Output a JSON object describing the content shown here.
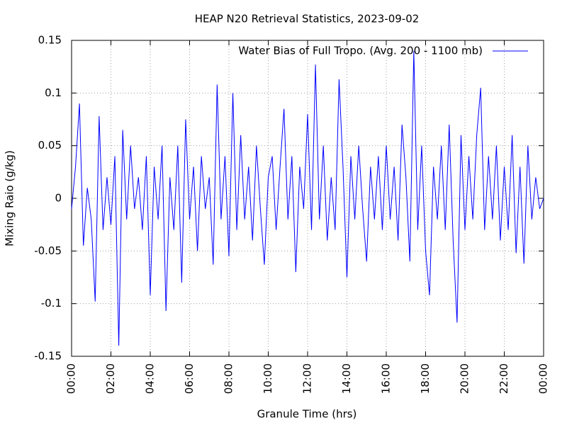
{
  "chart_data": {
    "type": "line",
    "title": "HEAP N20 Retrieval Statistics, 2023-09-02",
    "xlabel": "Granule Time (hrs)",
    "ylabel": "Mixing Raio (g/kg)",
    "legend_position": "upper right",
    "grid": true,
    "xlim": [
      0,
      24
    ],
    "ylim": [
      -0.15,
      0.15
    ],
    "xticks": [
      {
        "value": 0,
        "label": "00:00"
      },
      {
        "value": 2,
        "label": "02:00"
      },
      {
        "value": 4,
        "label": "04:00"
      },
      {
        "value": 6,
        "label": "06:00"
      },
      {
        "value": 8,
        "label": "08:00"
      },
      {
        "value": 10,
        "label": "10:00"
      },
      {
        "value": 12,
        "label": "12:00"
      },
      {
        "value": 14,
        "label": "14:00"
      },
      {
        "value": 16,
        "label": "16:00"
      },
      {
        "value": 18,
        "label": "18:00"
      },
      {
        "value": 20,
        "label": "20:00"
      },
      {
        "value": 22,
        "label": "22:00"
      },
      {
        "value": 24,
        "label": "00:00"
      }
    ],
    "yticks": [
      0.15,
      0.1,
      0.05,
      0,
      -0.05,
      -0.1,
      -0.15
    ],
    "x": [
      0,
      0.2,
      0.4,
      0.6,
      0.8,
      1,
      1.2,
      1.4,
      1.6,
      1.8,
      2,
      2.2,
      2.4,
      2.6,
      2.8,
      3,
      3.2,
      3.4,
      3.6,
      3.8,
      4,
      4.2,
      4.4,
      4.6,
      4.8,
      5,
      5.2,
      5.4,
      5.6,
      5.8,
      6,
      6.2,
      6.4,
      6.6,
      6.8,
      7,
      7.2,
      7.4,
      7.6,
      7.8,
      8,
      8.2,
      8.4,
      8.6,
      8.8,
      9,
      9.2,
      9.4,
      9.6,
      9.8,
      10,
      10.2,
      10.4,
      10.6,
      10.8,
      11,
      11.2,
      11.4,
      11.6,
      11.8,
      12,
      12.2,
      12.4,
      12.6,
      12.8,
      13,
      13.2,
      13.4,
      13.6,
      13.8,
      14,
      14.2,
      14.4,
      14.6,
      14.8,
      15,
      15.2,
      15.4,
      15.6,
      15.8,
      16,
      16.2,
      16.4,
      16.6,
      16.8,
      17,
      17.2,
      17.4,
      17.6,
      17.8,
      18,
      18.2,
      18.4,
      18.6,
      18.8,
      19,
      19.2,
      19.4,
      19.6,
      19.8,
      20,
      20.2,
      20.4,
      20.6,
      20.8,
      21,
      21.2,
      21.4,
      21.6,
      21.8,
      22,
      22.2,
      22.4,
      22.6,
      22.8,
      23,
      23.2,
      23.4,
      23.6,
      23.8,
      24
    ],
    "series": [
      {
        "name": "Water Bias of Full Tropo. (Avg. 200 - 1100 mb)",
        "color": "#0000ff",
        "values": [
          -0.01,
          0.03,
          0.09,
          -0.045,
          0.01,
          -0.02,
          -0.098,
          0.078,
          -0.03,
          0.02,
          -0.025,
          0.04,
          -0.14,
          0.065,
          -0.02,
          0.05,
          -0.01,
          0.02,
          -0.03,
          0.04,
          -0.092,
          0.03,
          -0.02,
          0.05,
          -0.107,
          0.02,
          -0.03,
          0.05,
          -0.08,
          0.075,
          -0.02,
          0.03,
          -0.05,
          0.04,
          -0.01,
          0.02,
          -0.063,
          0.108,
          -0.02,
          0.04,
          -0.055,
          0.1,
          -0.03,
          0.06,
          -0.02,
          0.03,
          -0.04,
          0.05,
          -0.01,
          -0.063,
          0.02,
          0.04,
          -0.03,
          0.03,
          0.085,
          -0.02,
          0.04,
          -0.07,
          0.03,
          -0.01,
          0.08,
          -0.03,
          0.127,
          -0.02,
          0.05,
          -0.04,
          0.02,
          -0.03,
          0.113,
          0.03,
          -0.075,
          0.04,
          -0.02,
          0.05,
          -0.01,
          -0.06,
          0.03,
          -0.02,
          0.04,
          -0.03,
          0.05,
          -0.02,
          0.03,
          -0.04,
          0.07,
          0.02,
          -0.06,
          0.14,
          -0.03,
          0.05,
          -0.05,
          -0.092,
          0.03,
          -0.02,
          0.05,
          -0.03,
          0.07,
          -0.04,
          -0.118,
          0.06,
          -0.03,
          0.04,
          -0.02,
          0.06,
          0.105,
          -0.03,
          0.04,
          -0.02,
          0.05,
          -0.04,
          0.03,
          -0.03,
          0.06,
          -0.052,
          0.03,
          -0.062,
          0.05,
          -0.02,
          0.02,
          -0.01,
          0
        ]
      }
    ]
  }
}
